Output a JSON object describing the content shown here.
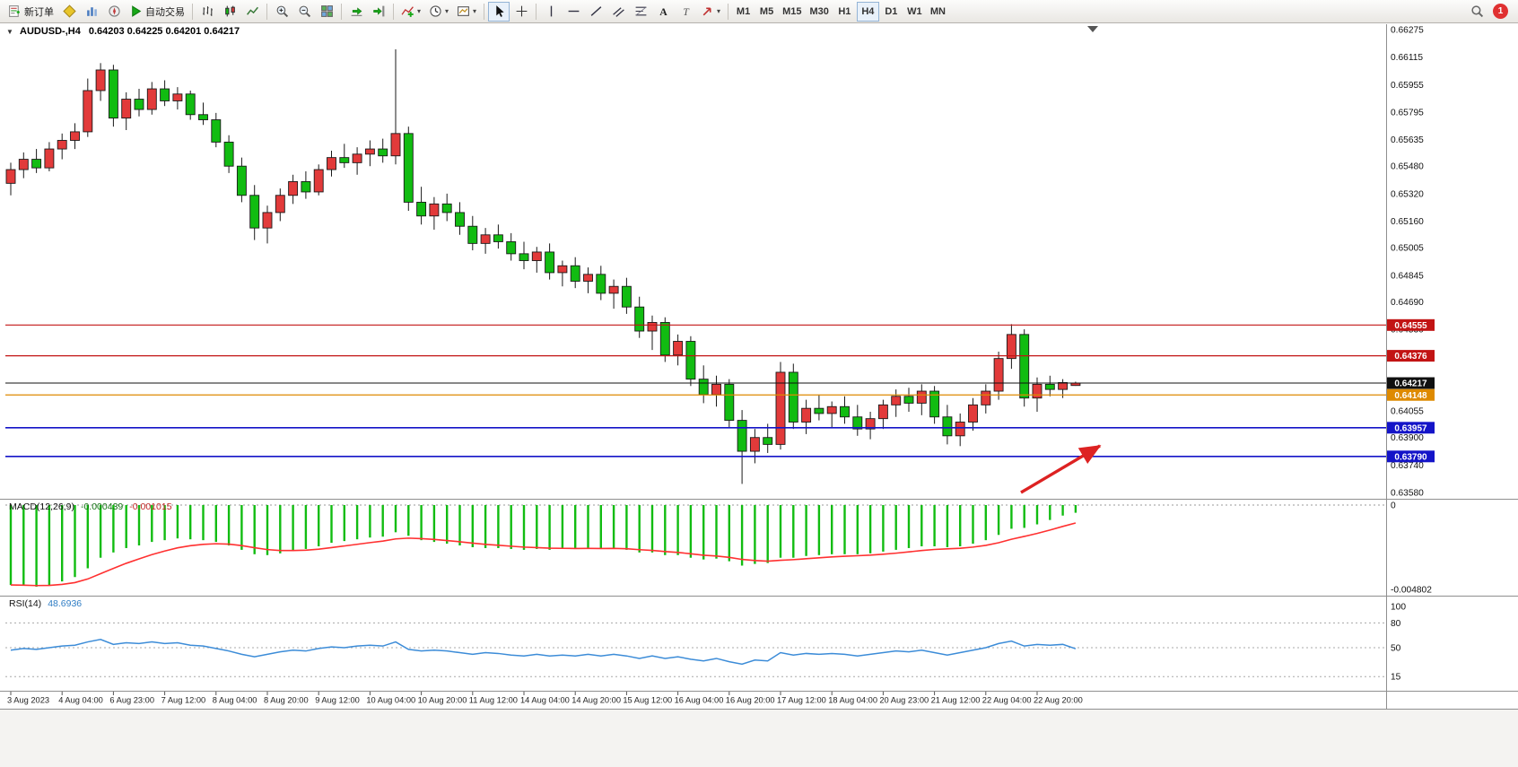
{
  "toolbar": {
    "new_order_label": "新订单",
    "auto_trading_label": "自动交易",
    "timeframes": [
      "M1",
      "M5",
      "M15",
      "M30",
      "H1",
      "H4",
      "D1",
      "W1",
      "MN"
    ],
    "active_timeframe": "H4",
    "notification_count": "1"
  },
  "chart": {
    "type": "candlestick",
    "title": {
      "symbol": "AUDUSD-,H4",
      "ohlc": "0.64203 0.64225 0.64201 0.64217"
    },
    "colors": {
      "bull": "#E23A3A",
      "bear": "#11BC11",
      "wick": "#1A1A1A",
      "macd_hist": "#11BC11",
      "macd_signal": "#FF3030",
      "rsi_line": "#3C8CD8",
      "arrow": "#DD2222"
    },
    "price_range": {
      "top": 0.66275,
      "bottom": 0.6358
    },
    "price_labels": [
      "0.66275",
      "0.66115",
      "0.65955",
      "0.65795",
      "0.65635",
      "0.65480",
      "0.65320",
      "0.65160",
      "0.65005",
      "0.64845",
      "0.64690",
      "0.64530",
      "0.64370",
      "0.64215",
      "0.64055",
      "0.63900",
      "0.63740",
      "0.63580"
    ],
    "price_tags": [
      {
        "text": "0.64555",
        "bg": "#C21414"
      },
      {
        "text": "0.64376",
        "bg": "#C21414"
      },
      {
        "text": "0.64217",
        "bg": "#101010"
      },
      {
        "text": "0.64148",
        "bg": "#DE8A00"
      },
      {
        "text": "0.63957",
        "bg": "#1414C8"
      },
      {
        "text": "0.63790",
        "bg": "#1414C8"
      }
    ],
    "hlines": [
      {
        "price": 0.64555,
        "color": "#C21414",
        "w": 1.2
      },
      {
        "price": 0.64376,
        "color": "#C21414",
        "w": 1.2
      },
      {
        "price": 0.64217,
        "color": "#101010",
        "w": 1.0
      },
      {
        "price": 0.64148,
        "color": "#DE8A00",
        "w": 1.2
      },
      {
        "price": 0.63957,
        "color": "#1414C8",
        "w": 1.6
      },
      {
        "price": 0.6379,
        "color": "#1414C8",
        "w": 1.6
      }
    ],
    "candles": [
      [
        0.6538,
        0.655,
        0.6531,
        0.6546
      ],
      [
        0.6546,
        0.6556,
        0.6541,
        0.6552
      ],
      [
        0.6552,
        0.6558,
        0.6544,
        0.6547
      ],
      [
        0.6547,
        0.6562,
        0.6545,
        0.6558
      ],
      [
        0.6558,
        0.6567,
        0.6552,
        0.6563
      ],
      [
        0.6563,
        0.6573,
        0.6558,
        0.6568
      ],
      [
        0.6568,
        0.6599,
        0.6565,
        0.6592
      ],
      [
        0.6592,
        0.6608,
        0.6586,
        0.6604
      ],
      [
        0.6604,
        0.6607,
        0.6571,
        0.6576
      ],
      [
        0.6576,
        0.6591,
        0.6569,
        0.6587
      ],
      [
        0.6587,
        0.6593,
        0.6577,
        0.6581
      ],
      [
        0.6581,
        0.6597,
        0.6578,
        0.6593
      ],
      [
        0.6593,
        0.6598,
        0.6583,
        0.6586
      ],
      [
        0.6586,
        0.6594,
        0.6581,
        0.659
      ],
      [
        0.659,
        0.6592,
        0.6575,
        0.6578
      ],
      [
        0.6578,
        0.6585,
        0.6572,
        0.6575
      ],
      [
        0.6575,
        0.6579,
        0.6559,
        0.6562
      ],
      [
        0.6562,
        0.6566,
        0.6544,
        0.6548
      ],
      [
        0.6548,
        0.6553,
        0.6527,
        0.6531
      ],
      [
        0.6531,
        0.6537,
        0.6505,
        0.6512
      ],
      [
        0.6512,
        0.6525,
        0.6503,
        0.6521
      ],
      [
        0.6521,
        0.6535,
        0.6516,
        0.6531
      ],
      [
        0.6531,
        0.6543,
        0.6526,
        0.6539
      ],
      [
        0.6539,
        0.6545,
        0.6529,
        0.6533
      ],
      [
        0.6533,
        0.6549,
        0.6531,
        0.6546
      ],
      [
        0.6546,
        0.6557,
        0.6542,
        0.6553
      ],
      [
        0.6553,
        0.6561,
        0.6547,
        0.655
      ],
      [
        0.655,
        0.6559,
        0.6543,
        0.6555
      ],
      [
        0.6555,
        0.6563,
        0.6548,
        0.6558
      ],
      [
        0.6558,
        0.6564,
        0.655,
        0.6554
      ],
      [
        0.6554,
        0.6616,
        0.6549,
        0.6567
      ],
      [
        0.6567,
        0.6571,
        0.6522,
        0.6527
      ],
      [
        0.6527,
        0.6536,
        0.6514,
        0.6519
      ],
      [
        0.6519,
        0.653,
        0.6511,
        0.6526
      ],
      [
        0.6526,
        0.6532,
        0.6516,
        0.6521
      ],
      [
        0.6521,
        0.6527,
        0.6508,
        0.6513
      ],
      [
        0.6513,
        0.6519,
        0.6499,
        0.6503
      ],
      [
        0.6503,
        0.6512,
        0.6497,
        0.6508
      ],
      [
        0.6508,
        0.6514,
        0.65,
        0.6504
      ],
      [
        0.6504,
        0.6509,
        0.6493,
        0.6497
      ],
      [
        0.6497,
        0.6504,
        0.6488,
        0.6493
      ],
      [
        0.6493,
        0.6501,
        0.6486,
        0.6498
      ],
      [
        0.6498,
        0.6503,
        0.6482,
        0.6486
      ],
      [
        0.6486,
        0.6493,
        0.6478,
        0.649
      ],
      [
        0.649,
        0.6495,
        0.6477,
        0.6481
      ],
      [
        0.6481,
        0.6489,
        0.6474,
        0.6485
      ],
      [
        0.6485,
        0.649,
        0.647,
        0.6474
      ],
      [
        0.6474,
        0.6482,
        0.6465,
        0.6478
      ],
      [
        0.6478,
        0.6483,
        0.6462,
        0.6466
      ],
      [
        0.6466,
        0.6472,
        0.6448,
        0.6452
      ],
      [
        0.6452,
        0.6461,
        0.6441,
        0.6457
      ],
      [
        0.6457,
        0.646,
        0.6434,
        0.6438
      ],
      [
        0.6438,
        0.645,
        0.6432,
        0.6446
      ],
      [
        0.6446,
        0.6449,
        0.642,
        0.6424
      ],
      [
        0.6424,
        0.6432,
        0.641,
        0.6415
      ],
      [
        0.6415,
        0.6426,
        0.6408,
        0.6421
      ],
      [
        0.6421,
        0.6424,
        0.6396,
        0.64
      ],
      [
        0.64,
        0.6406,
        0.6363,
        0.6382
      ],
      [
        0.6382,
        0.6395,
        0.6375,
        0.639
      ],
      [
        0.639,
        0.6398,
        0.6381,
        0.6386
      ],
      [
        0.6386,
        0.6434,
        0.6383,
        0.6428
      ],
      [
        0.6428,
        0.6433,
        0.6395,
        0.6399
      ],
      [
        0.6399,
        0.6412,
        0.6392,
        0.6407
      ],
      [
        0.6407,
        0.6415,
        0.64,
        0.6404
      ],
      [
        0.6404,
        0.6411,
        0.6396,
        0.6408
      ],
      [
        0.6408,
        0.6414,
        0.6398,
        0.6402
      ],
      [
        0.6402,
        0.6409,
        0.6391,
        0.6395
      ],
      [
        0.6395,
        0.6405,
        0.6389,
        0.6401
      ],
      [
        0.6401,
        0.6412,
        0.6395,
        0.6409
      ],
      [
        0.6409,
        0.6418,
        0.6402,
        0.6414
      ],
      [
        0.6414,
        0.6419,
        0.6405,
        0.641
      ],
      [
        0.641,
        0.6421,
        0.6403,
        0.6417
      ],
      [
        0.6417,
        0.642,
        0.6398,
        0.6402
      ],
      [
        0.6402,
        0.6409,
        0.6386,
        0.6391
      ],
      [
        0.6391,
        0.6404,
        0.6385,
        0.6399
      ],
      [
        0.6399,
        0.6413,
        0.6394,
        0.6409
      ],
      [
        0.6409,
        0.6421,
        0.6404,
        0.6417
      ],
      [
        0.6417,
        0.644,
        0.6412,
        0.6436
      ],
      [
        0.6436,
        0.6456,
        0.643,
        0.645
      ],
      [
        0.645,
        0.6453,
        0.6408,
        0.6413
      ],
      [
        0.6413,
        0.6425,
        0.6405,
        0.6421
      ],
      [
        0.6421,
        0.6426,
        0.6414,
        0.6418
      ],
      [
        0.6418,
        0.6424,
        0.6413,
        0.6422
      ],
      [
        0.64203,
        0.64225,
        0.64201,
        0.64217
      ]
    ],
    "macd": {
      "label": "MACD(12,26,9)",
      "value_main": "-0.000439",
      "value_signal": "-0.001015",
      "range": {
        "top": 0,
        "bottom": -0.004802
      },
      "axis_labels": [
        "0",
        "-0.004802"
      ],
      "values": [
        -0.00455,
        -0.0046,
        -0.00465,
        -0.00455,
        -0.00435,
        -0.0041,
        -0.0036,
        -0.003,
        -0.0027,
        -0.00245,
        -0.0023,
        -0.0021,
        -0.002,
        -0.0019,
        -0.00195,
        -0.002,
        -0.0021,
        -0.0023,
        -0.00255,
        -0.0028,
        -0.00285,
        -0.00275,
        -0.0026,
        -0.0025,
        -0.00235,
        -0.00215,
        -0.00205,
        -0.00195,
        -0.00185,
        -0.0018,
        -0.00155,
        -0.00175,
        -0.002,
        -0.0021,
        -0.0022,
        -0.0023,
        -0.0024,
        -0.00245,
        -0.00245,
        -0.0025,
        -0.00255,
        -0.0025,
        -0.00255,
        -0.0025,
        -0.0025,
        -0.00245,
        -0.0025,
        -0.00245,
        -0.00255,
        -0.0027,
        -0.0027,
        -0.00285,
        -0.00285,
        -0.003,
        -0.0031,
        -0.00305,
        -0.0032,
        -0.00345,
        -0.00335,
        -0.0033,
        -0.003,
        -0.003,
        -0.0029,
        -0.00285,
        -0.0028,
        -0.0028,
        -0.0028,
        -0.00275,
        -0.00265,
        -0.00255,
        -0.00245,
        -0.00235,
        -0.00235,
        -0.0024,
        -0.00235,
        -0.0022,
        -0.002,
        -0.0017,
        -0.00135,
        -0.0013,
        -0.0011,
        -0.00085,
        -0.0006,
        -0.000439
      ]
    },
    "rsi": {
      "label": "RSI(14)",
      "value": "48.6936",
      "levels": [
        100,
        80,
        50,
        15
      ],
      "values": [
        47,
        49,
        48,
        50,
        52,
        53,
        57,
        60,
        54,
        56,
        55,
        57,
        55,
        56,
        53,
        52,
        49,
        46,
        42,
        39,
        42,
        45,
        47,
        46,
        49,
        51,
        50,
        52,
        53,
        52,
        57,
        48,
        46,
        47,
        46,
        44,
        42,
        44,
        43,
        41,
        40,
        42,
        40,
        41,
        40,
        42,
        40,
        42,
        40,
        37,
        40,
        37,
        39,
        36,
        34,
        37,
        33,
        30,
        35,
        34,
        44,
        41,
        43,
        42,
        43,
        42,
        40,
        42,
        44,
        46,
        45,
        47,
        44,
        41,
        44,
        47,
        50,
        55,
        58,
        52,
        54,
        53,
        54,
        48.6936
      ]
    },
    "time_labels": [
      "3 Aug 2023",
      "4 Aug 04:00",
      "6 Aug 23:00",
      "7 Aug 12:00",
      "8 Aug 04:00",
      "8 Aug 20:00",
      "9 Aug 12:00",
      "10 Aug 04:00",
      "10 Aug 20:00",
      "11 Aug 12:00",
      "14 Aug 04:00",
      "14 Aug 20:00",
      "15 Aug 12:00",
      "16 Aug 04:00",
      "16 Aug 20:00",
      "17 Aug 12:00",
      "18 Aug 04:00",
      "20 Aug 23:00",
      "21 Aug 12:00",
      "22 Aug 04:00",
      "22 Aug 20:00"
    ]
  }
}
